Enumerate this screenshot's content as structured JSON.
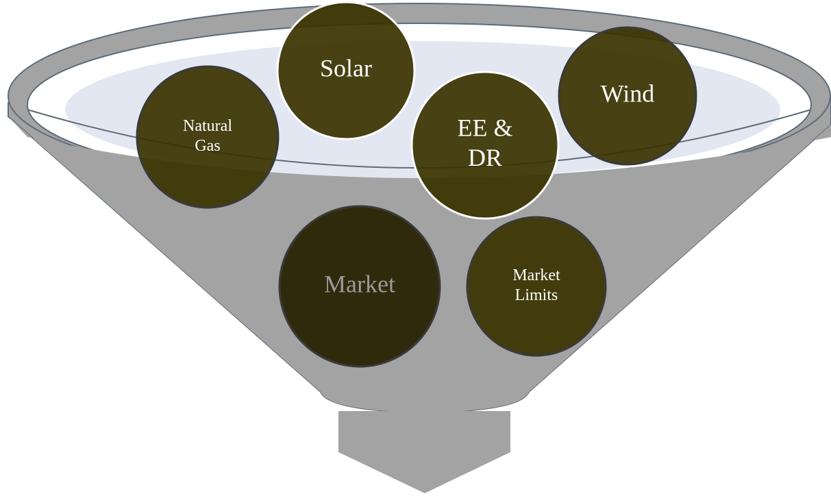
{
  "nodes": [
    {
      "lines": [
        "Solar"
      ]
    },
    {
      "lines": [
        "Natural",
        "Gas"
      ]
    },
    {
      "lines": [
        "EE &",
        "DR"
      ]
    },
    {
      "lines": [
        "Wind"
      ]
    },
    {
      "lines": [
        "Market"
      ]
    },
    {
      "lines": [
        "Market",
        "Limits"
      ]
    }
  ]
}
